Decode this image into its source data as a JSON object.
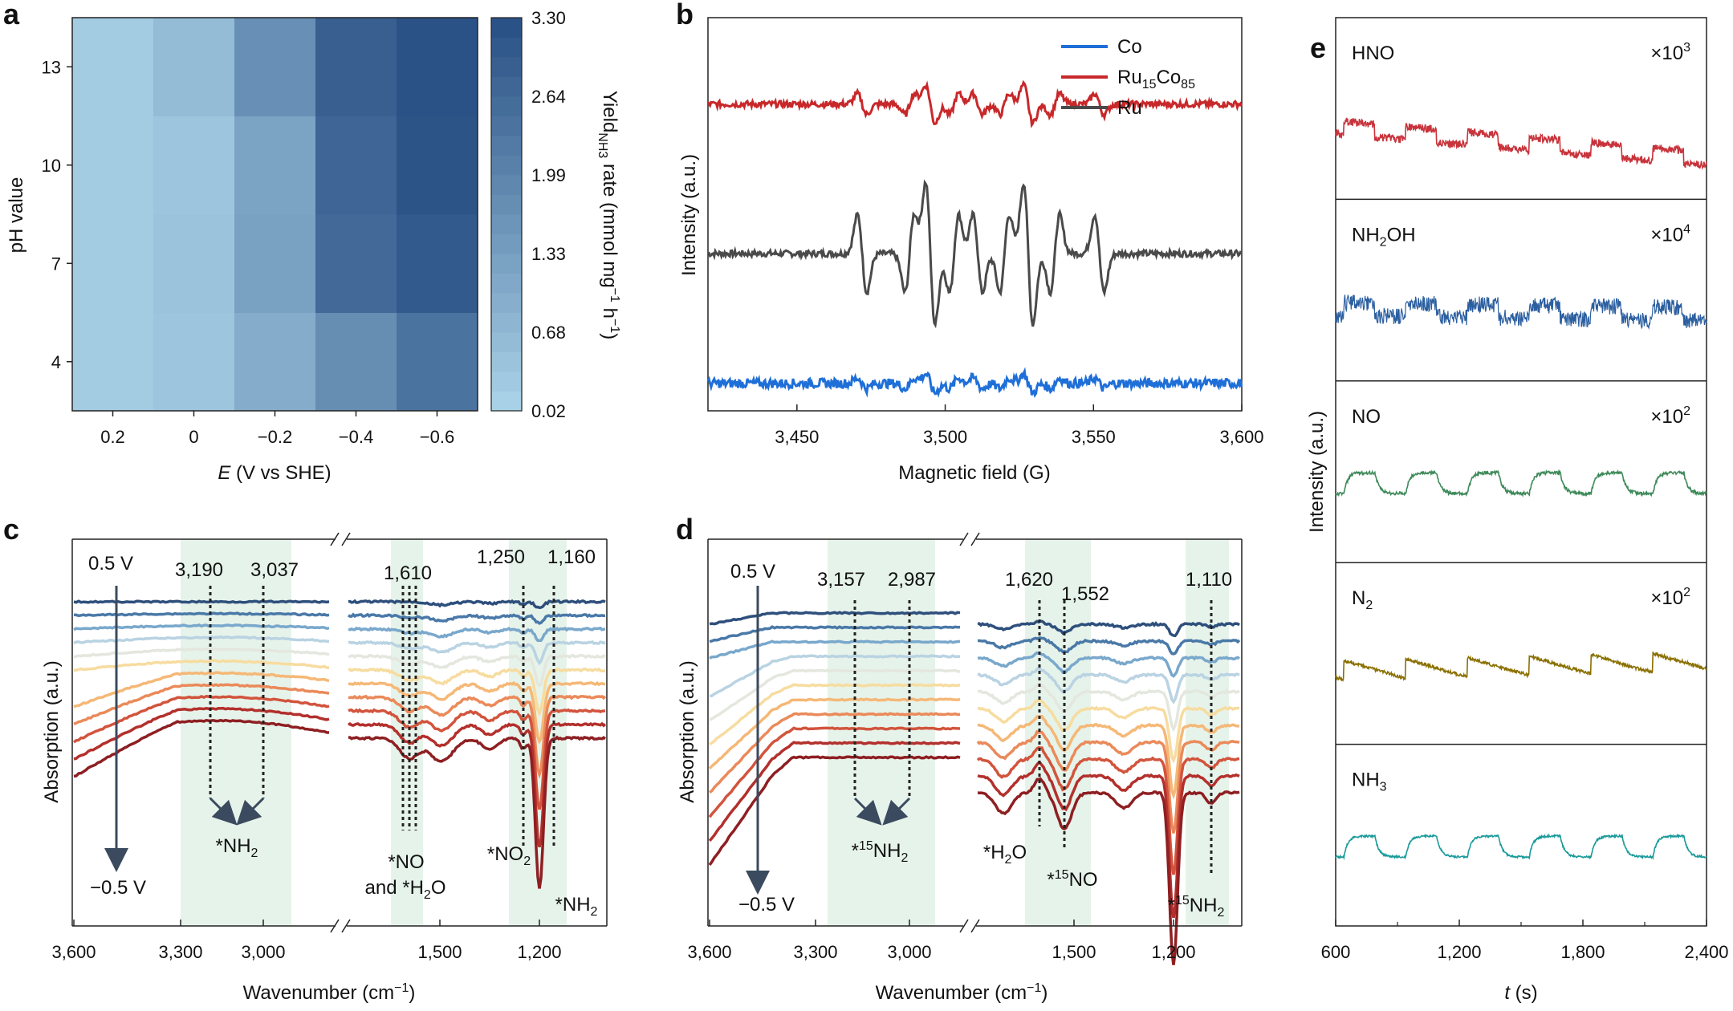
{
  "panels": {
    "a": {
      "label": "a",
      "chart_data": {
        "type": "heatmap",
        "xlabel_italic": "E",
        "xlabel_rest": " (V vs SHE)",
        "ylabel": "pH value",
        "x_categories": [
          "0.2",
          "0",
          "−0.2",
          "−0.4",
          "−0.6"
        ],
        "y_categories": [
          "4",
          "7",
          "10",
          "13"
        ],
        "values": [
          [
            0.15,
            0.3,
            0.95,
            1.75,
            2.45
          ],
          [
            0.15,
            0.35,
            1.25,
            2.7,
            3.1
          ],
          [
            0.15,
            0.3,
            1.2,
            2.8,
            3.25
          ],
          [
            0.15,
            0.55,
            1.7,
            2.95,
            3.3
          ]
        ],
        "colorbar": {
          "ticks": [
            "0.02",
            "0.68",
            "1.33",
            "1.99",
            "2.64",
            "3.30"
          ],
          "range": [
            0.02,
            3.3
          ],
          "label_parts": [
            "Yield",
            "NH3",
            " rate (mmol mg",
            "−1",
            " h",
            "−1",
            ")"
          ],
          "color_low": "#a8d0e6",
          "color_high": "#2b5286"
        }
      }
    },
    "b": {
      "label": "b",
      "chart_data": {
        "type": "line",
        "xlabel": "Magnetic field (G)",
        "ylabel": "Intensity (a.u.)",
        "xlim": [
          3420,
          3600
        ],
        "xticks": [
          "3,450",
          "3,500",
          "3,550",
          "3,600"
        ],
        "xtick_values": [
          3450,
          3500,
          3550,
          3600
        ],
        "legend": [
          {
            "name": "Co",
            "color": "#1f6fd8"
          },
          {
            "name": "Ru15Co85",
            "base": "Ru",
            "sub1": "15",
            "mid": "Co",
            "sub2": "85",
            "color": "#c8282a"
          },
          {
            "name": "Ru",
            "color": "#4a4a4a"
          }
        ],
        "series_offsets": {
          "Ru15Co85": 0.78,
          "Ru": 0.4,
          "Co": 0.07
        },
        "peak_fields": [
          3472,
          3488,
          3495,
          3503,
          3511,
          3520,
          3528,
          3537,
          3552
        ],
        "peak_amplitudes": {
          "Ru15Co85": 0.08,
          "Ru": 0.3,
          "Co": 0.04
        }
      }
    },
    "c": {
      "label": "c",
      "chart_data": {
        "type": "line",
        "xlabel": "Wavenumber (cm−1)",
        "ylabel": "Absorption (a.u.)",
        "xticks": [
          "3,600",
          "3,300",
          "3,000",
          "1,500",
          "1,200"
        ],
        "potential_top": "0.5 V",
        "potential_bottom": "−0.5 V",
        "peaks": [
          "3,190",
          "3,037",
          "1,610",
          "1,250",
          "1,160"
        ],
        "labels": {
          "nh2_left": "*NH2",
          "no": "*NO",
          "and_h2o": "and *H2O",
          "no2": "*NO2",
          "nh2_right": "*NH2"
        },
        "n_spectra": 11
      }
    },
    "d": {
      "label": "d",
      "chart_data": {
        "type": "line",
        "xlabel": "Wavenumber (cm−1)",
        "ylabel": "Absorption (a.u.)",
        "xticks": [
          "3,600",
          "3,300",
          "3,000",
          "1,500",
          "1,200"
        ],
        "potential_top": "0.5 V",
        "potential_bottom": "−0.5 V",
        "peaks": [
          "3,157",
          "2,987",
          "1,620",
          "1,552",
          "1,110"
        ],
        "labels": {
          "nh2_left": "*15NH2",
          "h2o": "*H2O",
          "no": "*15NO",
          "nh2_right": "*15NH2"
        },
        "n_spectra": 11
      }
    },
    "e": {
      "label": "e",
      "chart_data": {
        "type": "line",
        "xlabel_italic": "t",
        "xlabel_rest": " (s)",
        "ylabel": "Intensity (a.u.)",
        "xlim": [
          600,
          2400
        ],
        "xticks": [
          "600",
          "1,200",
          "1,800",
          "2,400"
        ],
        "xtick_values": [
          600,
          1200,
          1800,
          2400
        ],
        "series": [
          {
            "name": "HNO",
            "multiplier": "×10",
            "exp": "3",
            "color": "#c8343c"
          },
          {
            "name": "NH2OH",
            "multiplier": "×10",
            "exp": "4",
            "color": "#2c5fa0"
          },
          {
            "name": "NO",
            "multiplier": "×10",
            "exp": "2",
            "color": "#3f8a5a"
          },
          {
            "name": "N2",
            "multiplier": "×10",
            "exp": "2",
            "color": "#8a7000"
          },
          {
            "name": "NH3",
            "multiplier": "",
            "exp": "",
            "color": "#1a9a9a"
          }
        ]
      }
    }
  }
}
